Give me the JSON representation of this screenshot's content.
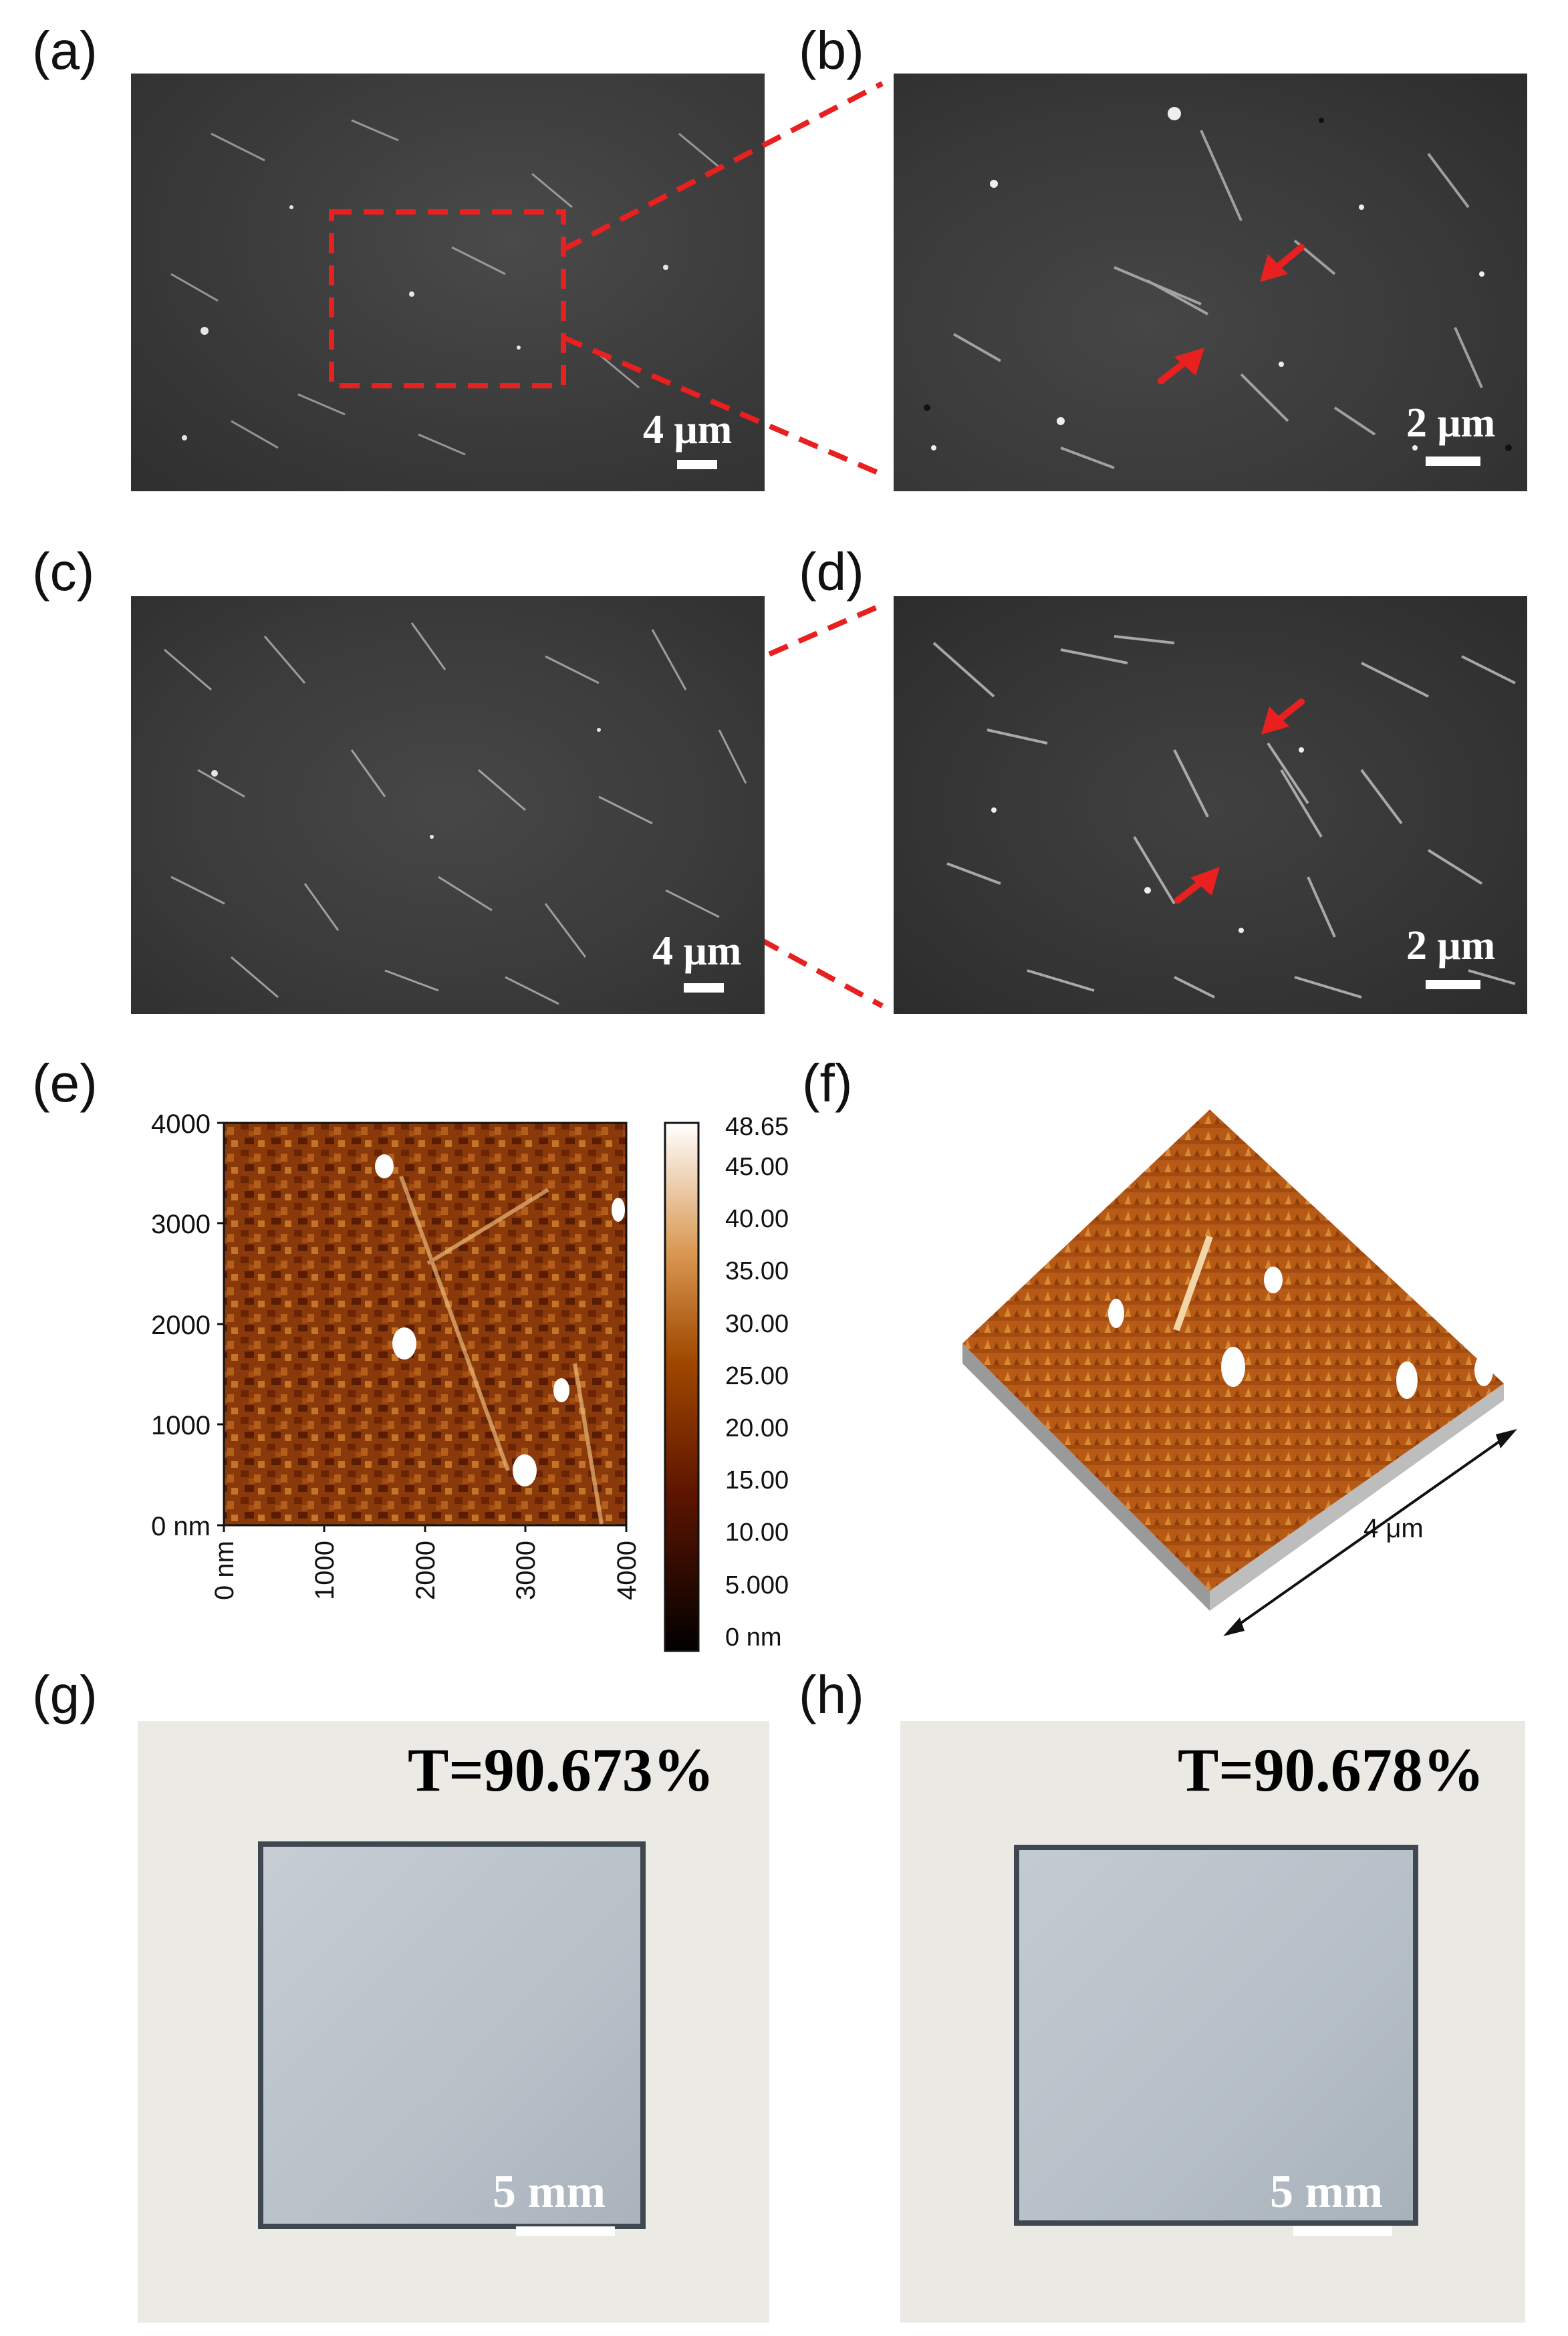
{
  "panels": {
    "a": {
      "label": "(a)",
      "scale_text": "4 μm"
    },
    "b": {
      "label": "(b)",
      "scale_text": "2 μm"
    },
    "c": {
      "label": "(c)",
      "scale_text": "4 μm"
    },
    "d": {
      "label": "(d)",
      "scale_text": "2 μm"
    },
    "e": {
      "label": "(e)",
      "y_ticks": [
        "4000",
        "3000",
        "2000",
        "1000",
        "0 nm"
      ],
      "x_ticks": [
        "0 nm",
        "1000",
        "2000",
        "3000",
        "4000"
      ],
      "colorbar_ticks": [
        "48.65",
        "45.00",
        "40.00",
        "35.00",
        "30.00",
        "25.00",
        "20.00",
        "15.00",
        "10.00",
        "5.000",
        "0 nm"
      ]
    },
    "f": {
      "label": "(f)",
      "dimension_text": "4 μm"
    },
    "g": {
      "label": "(g)",
      "transmittance": "T=90.673%",
      "scale_text": "5 mm"
    },
    "h": {
      "label": "(h)",
      "transmittance": "T=90.678%",
      "scale_text": "5 mm"
    }
  },
  "colors": {
    "highlight": "#e8201f",
    "afm_dark": "#4a1600",
    "afm_mid": "#a8500f",
    "afm_light": "#f2dcc2"
  }
}
